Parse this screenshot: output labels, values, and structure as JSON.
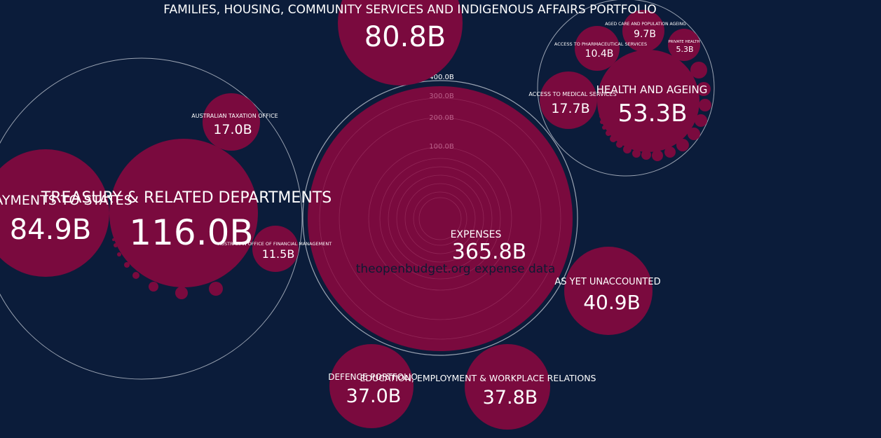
{
  "colors": {
    "background": "#0b1c3a",
    "bubble": "#7a0a3e",
    "ring": "#9aa3b2",
    "text": "#ffffff",
    "watermark": "#0d1a33"
  },
  "watermark": "theopenbudget.org expense data",
  "chart_data": {
    "type": "bubble",
    "center": {
      "label": "EXPENSES",
      "value": "365.8B"
    },
    "scale_ticks": [
      "400.0B",
      "300.0B",
      "200.0B",
      "100.0B"
    ],
    "nodes": [
      {
        "id": "families",
        "label": "FAMILIES, HOUSING, COMMUNITY SERVICES AND INDIGENOUS AFFAIRS PORTFOLIO",
        "value": "80.8B"
      },
      {
        "id": "health",
        "label": "HEALTH AND AGEING",
        "value": "53.3B"
      },
      {
        "id": "aged-care",
        "label": "AGED CARE AND POPULATION AGEING",
        "value": "9.7B"
      },
      {
        "id": "pharma",
        "label": "ACCESS TO PHARMACEUTICAL SERVICES",
        "value": "10.4B"
      },
      {
        "id": "private-health",
        "label": "PRIVATE HEALTH",
        "value": "5.3B"
      },
      {
        "id": "medical",
        "label": "ACCESS TO MEDICAL SERVICES",
        "value": "17.7B"
      },
      {
        "id": "treasury",
        "label": "TREASURY & RELATED DEPARTMENTS",
        "value": "116.0B"
      },
      {
        "id": "states",
        "label": "PAYMENTS TO STATES",
        "value": "84.9B"
      },
      {
        "id": "tax-office",
        "label": "AUSTRALIAN TAXATION OFFICE",
        "value": "17.0B"
      },
      {
        "id": "financial-mgmt",
        "label": "AUSTRALIAN OFFICE OF FINANCIAL MANAGEMENT",
        "value": "11.5B"
      },
      {
        "id": "unaccounted",
        "label": "AS YET UNACCOUNTED",
        "value": "40.9B"
      },
      {
        "id": "defence",
        "label": "DEFENCE PORTFOLIO",
        "value": "37.0B"
      },
      {
        "id": "education",
        "label": "EDUCATION, EMPLOYMENT & WORKPLACE RELATIONS",
        "value": "37.8B"
      }
    ]
  }
}
